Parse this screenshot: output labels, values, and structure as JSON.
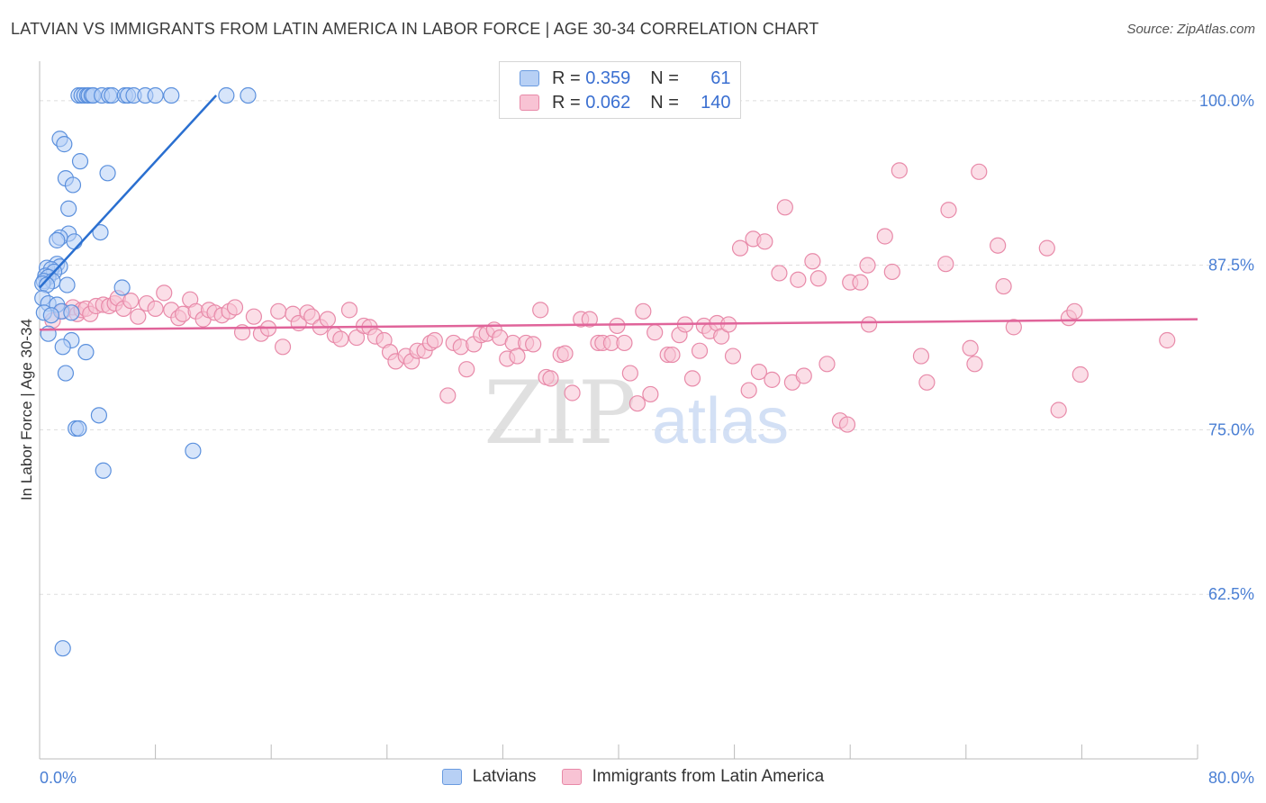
{
  "title": "LATVIAN VS IMMIGRANTS FROM LATIN AMERICA IN LABOR FORCE | AGE 30-34 CORRELATION CHART",
  "source": "Source: ZipAtlas.com",
  "watermark": {
    "zip": "ZIP",
    "atlas": "atlas"
  },
  "legend": {
    "r_label": "R =",
    "n_label": "N =",
    "rows": [
      {
        "r": "0.359",
        "n": "61"
      },
      {
        "r": "0.062",
        "n": "140"
      }
    ]
  },
  "colors": {
    "latvians_fill": "#b7d0f5",
    "latvians_stroke": "#5b90dd",
    "latvians_line": "#2a6fd0",
    "latin_fill": "#f8c3d4",
    "latin_stroke": "#e88aa9",
    "latin_line": "#e0649a",
    "axis_text": "#4a7fd4"
  },
  "chart_data": {
    "type": "scatter",
    "xlabel": "",
    "ylabel": "In Labor Force | Age 30-34",
    "xlim": [
      0,
      80
    ],
    "ylim": [
      50,
      103
    ],
    "x_tick_labels": [
      "0.0%",
      "80.0%"
    ],
    "y_ticks": [
      62.5,
      75.0,
      87.5,
      100.0
    ],
    "y_tick_labels": [
      "62.5%",
      "75.0%",
      "87.5%",
      "100.0%"
    ],
    "grid": "horizontal dashed",
    "legend_position": "bottom-center",
    "series": [
      {
        "name": "Latvians",
        "r": 0.359,
        "n": 61,
        "trend": {
          "x": [
            0.0,
            12.2
          ],
          "y": [
            85.8,
            100.4
          ]
        },
        "points": [
          [
            2.7,
            100.4
          ],
          [
            2.9,
            100.4
          ],
          [
            3.1,
            100.4
          ],
          [
            3.3,
            100.4
          ],
          [
            3.4,
            100.4
          ],
          [
            3.6,
            100.4
          ],
          [
            3.7,
            100.4
          ],
          [
            4.3,
            100.4
          ],
          [
            4.8,
            100.4
          ],
          [
            5.0,
            100.4
          ],
          [
            5.9,
            100.4
          ],
          [
            6.1,
            100.4
          ],
          [
            6.5,
            100.4
          ],
          [
            7.3,
            100.4
          ],
          [
            8.0,
            100.4
          ],
          [
            9.1,
            100.4
          ],
          [
            12.9,
            100.4
          ],
          [
            14.4,
            100.4
          ],
          [
            1.4,
            97.1
          ],
          [
            1.7,
            96.7
          ],
          [
            2.8,
            95.4
          ],
          [
            4.7,
            94.5
          ],
          [
            1.8,
            94.1
          ],
          [
            2.3,
            93.6
          ],
          [
            2.0,
            91.8
          ],
          [
            4.2,
            90.0
          ],
          [
            2.0,
            89.9
          ],
          [
            1.4,
            89.6
          ],
          [
            1.2,
            89.4
          ],
          [
            2.4,
            89.3
          ],
          [
            1.2,
            87.6
          ],
          [
            1.4,
            87.4
          ],
          [
            0.5,
            87.3
          ],
          [
            0.8,
            87.2
          ],
          [
            1.0,
            87.0
          ],
          [
            0.4,
            86.7
          ],
          [
            0.6,
            86.6
          ],
          [
            0.3,
            86.3
          ],
          [
            0.9,
            86.3
          ],
          [
            0.2,
            86.1
          ],
          [
            0.5,
            86.0
          ],
          [
            1.9,
            86.0
          ],
          [
            5.7,
            85.8
          ],
          [
            0.2,
            85.0
          ],
          [
            0.6,
            84.6
          ],
          [
            1.2,
            84.5
          ],
          [
            1.5,
            84.0
          ],
          [
            0.3,
            83.9
          ],
          [
            2.2,
            83.9
          ],
          [
            0.8,
            83.7
          ],
          [
            0.6,
            82.3
          ],
          [
            2.2,
            81.8
          ],
          [
            1.6,
            81.3
          ],
          [
            3.2,
            80.9
          ],
          [
            1.8,
            79.3
          ],
          [
            4.1,
            76.1
          ],
          [
            2.5,
            75.1
          ],
          [
            2.7,
            75.1
          ],
          [
            10.6,
            73.4
          ],
          [
            4.4,
            71.9
          ],
          [
            1.6,
            58.4
          ]
        ]
      },
      {
        "name": "Immigrants from Latin America",
        "r": 0.062,
        "n": 140,
        "trend": {
          "x": [
            0.0,
            80.0
          ],
          "y": [
            82.6,
            83.4
          ]
        },
        "points": [
          [
            0.9,
            83.3
          ],
          [
            1.6,
            84.0
          ],
          [
            2.3,
            84.3
          ],
          [
            2.6,
            83.8
          ],
          [
            2.9,
            84.1
          ],
          [
            3.2,
            84.2
          ],
          [
            3.5,
            83.8
          ],
          [
            3.9,
            84.4
          ],
          [
            4.4,
            84.5
          ],
          [
            4.8,
            84.4
          ],
          [
            5.2,
            84.6
          ],
          [
            5.4,
            85.0
          ],
          [
            5.8,
            84.2
          ],
          [
            6.3,
            84.8
          ],
          [
            6.8,
            83.6
          ],
          [
            7.4,
            84.6
          ],
          [
            8.0,
            84.2
          ],
          [
            8.6,
            85.4
          ],
          [
            9.1,
            84.1
          ],
          [
            9.6,
            83.5
          ],
          [
            9.9,
            83.8
          ],
          [
            10.4,
            84.9
          ],
          [
            10.8,
            84.0
          ],
          [
            11.3,
            83.4
          ],
          [
            11.7,
            84.1
          ],
          [
            12.1,
            83.9
          ],
          [
            12.6,
            83.7
          ],
          [
            13.1,
            84.0
          ],
          [
            13.5,
            84.3
          ],
          [
            14.0,
            82.4
          ],
          [
            14.8,
            83.6
          ],
          [
            15.3,
            82.3
          ],
          [
            15.8,
            82.7
          ],
          [
            16.5,
            84.0
          ],
          [
            16.8,
            81.3
          ],
          [
            17.5,
            83.8
          ],
          [
            17.9,
            83.1
          ],
          [
            18.5,
            83.9
          ],
          [
            18.8,
            83.6
          ],
          [
            19.4,
            82.8
          ],
          [
            19.9,
            83.4
          ],
          [
            20.4,
            82.2
          ],
          [
            20.8,
            81.9
          ],
          [
            21.4,
            84.1
          ],
          [
            21.9,
            82.0
          ],
          [
            22.4,
            82.9
          ],
          [
            22.8,
            82.8
          ],
          [
            23.2,
            82.1
          ],
          [
            23.8,
            81.8
          ],
          [
            24.2,
            80.9
          ],
          [
            24.6,
            80.2
          ],
          [
            25.3,
            80.6
          ],
          [
            25.7,
            80.2
          ],
          [
            26.1,
            81.0
          ],
          [
            26.6,
            81.0
          ],
          [
            27.0,
            81.6
          ],
          [
            27.3,
            81.8
          ],
          [
            28.2,
            77.6
          ],
          [
            28.6,
            81.6
          ],
          [
            29.1,
            81.3
          ],
          [
            29.5,
            79.6
          ],
          [
            30.0,
            81.5
          ],
          [
            30.5,
            82.2
          ],
          [
            30.9,
            82.3
          ],
          [
            31.4,
            82.6
          ],
          [
            31.8,
            82.0
          ],
          [
            32.3,
            80.4
          ],
          [
            32.7,
            81.6
          ],
          [
            33.0,
            80.6
          ],
          [
            33.6,
            81.6
          ],
          [
            34.1,
            81.5
          ],
          [
            34.6,
            84.1
          ],
          [
            35.0,
            79.0
          ],
          [
            35.3,
            78.9
          ],
          [
            36.0,
            80.7
          ],
          [
            36.3,
            80.8
          ],
          [
            36.8,
            77.8
          ],
          [
            37.4,
            83.4
          ],
          [
            38.0,
            83.4
          ],
          [
            38.6,
            81.6
          ],
          [
            38.9,
            81.6
          ],
          [
            39.5,
            81.6
          ],
          [
            39.9,
            82.9
          ],
          [
            40.4,
            81.6
          ],
          [
            40.8,
            79.3
          ],
          [
            41.3,
            77.0
          ],
          [
            41.7,
            84.0
          ],
          [
            42.2,
            77.7
          ],
          [
            42.5,
            82.4
          ],
          [
            43.4,
            80.7
          ],
          [
            43.7,
            80.7
          ],
          [
            44.2,
            82.2
          ],
          [
            44.6,
            83.0
          ],
          [
            45.1,
            78.9
          ],
          [
            45.6,
            81.0
          ],
          [
            45.9,
            82.9
          ],
          [
            46.3,
            82.5
          ],
          [
            46.8,
            83.1
          ],
          [
            47.1,
            82.1
          ],
          [
            47.6,
            83.0
          ],
          [
            47.9,
            80.6
          ],
          [
            48.4,
            88.8
          ],
          [
            49.0,
            78.0
          ],
          [
            49.3,
            89.5
          ],
          [
            49.7,
            79.4
          ],
          [
            50.1,
            89.3
          ],
          [
            50.6,
            78.8
          ],
          [
            51.1,
            86.9
          ],
          [
            51.5,
            91.9
          ],
          [
            52.0,
            78.6
          ],
          [
            52.4,
            86.4
          ],
          [
            52.8,
            79.1
          ],
          [
            53.4,
            87.8
          ],
          [
            53.8,
            86.5
          ],
          [
            54.4,
            80.0
          ],
          [
            55.3,
            75.7
          ],
          [
            55.8,
            75.4
          ],
          [
            56.0,
            86.2
          ],
          [
            56.7,
            86.2
          ],
          [
            57.2,
            87.5
          ],
          [
            57.3,
            83.0
          ],
          [
            58.4,
            89.7
          ],
          [
            58.9,
            87.0
          ],
          [
            59.4,
            94.7
          ],
          [
            60.9,
            80.6
          ],
          [
            61.3,
            78.6
          ],
          [
            62.6,
            87.6
          ],
          [
            62.8,
            91.7
          ],
          [
            64.3,
            81.2
          ],
          [
            64.6,
            80.0
          ],
          [
            64.9,
            94.6
          ],
          [
            66.2,
            89.0
          ],
          [
            66.6,
            85.9
          ],
          [
            67.3,
            82.8
          ],
          [
            69.6,
            88.8
          ],
          [
            70.4,
            76.5
          ],
          [
            71.1,
            83.5
          ],
          [
            71.5,
            84.0
          ],
          [
            71.9,
            79.2
          ],
          [
            77.9,
            81.8
          ]
        ]
      }
    ]
  }
}
